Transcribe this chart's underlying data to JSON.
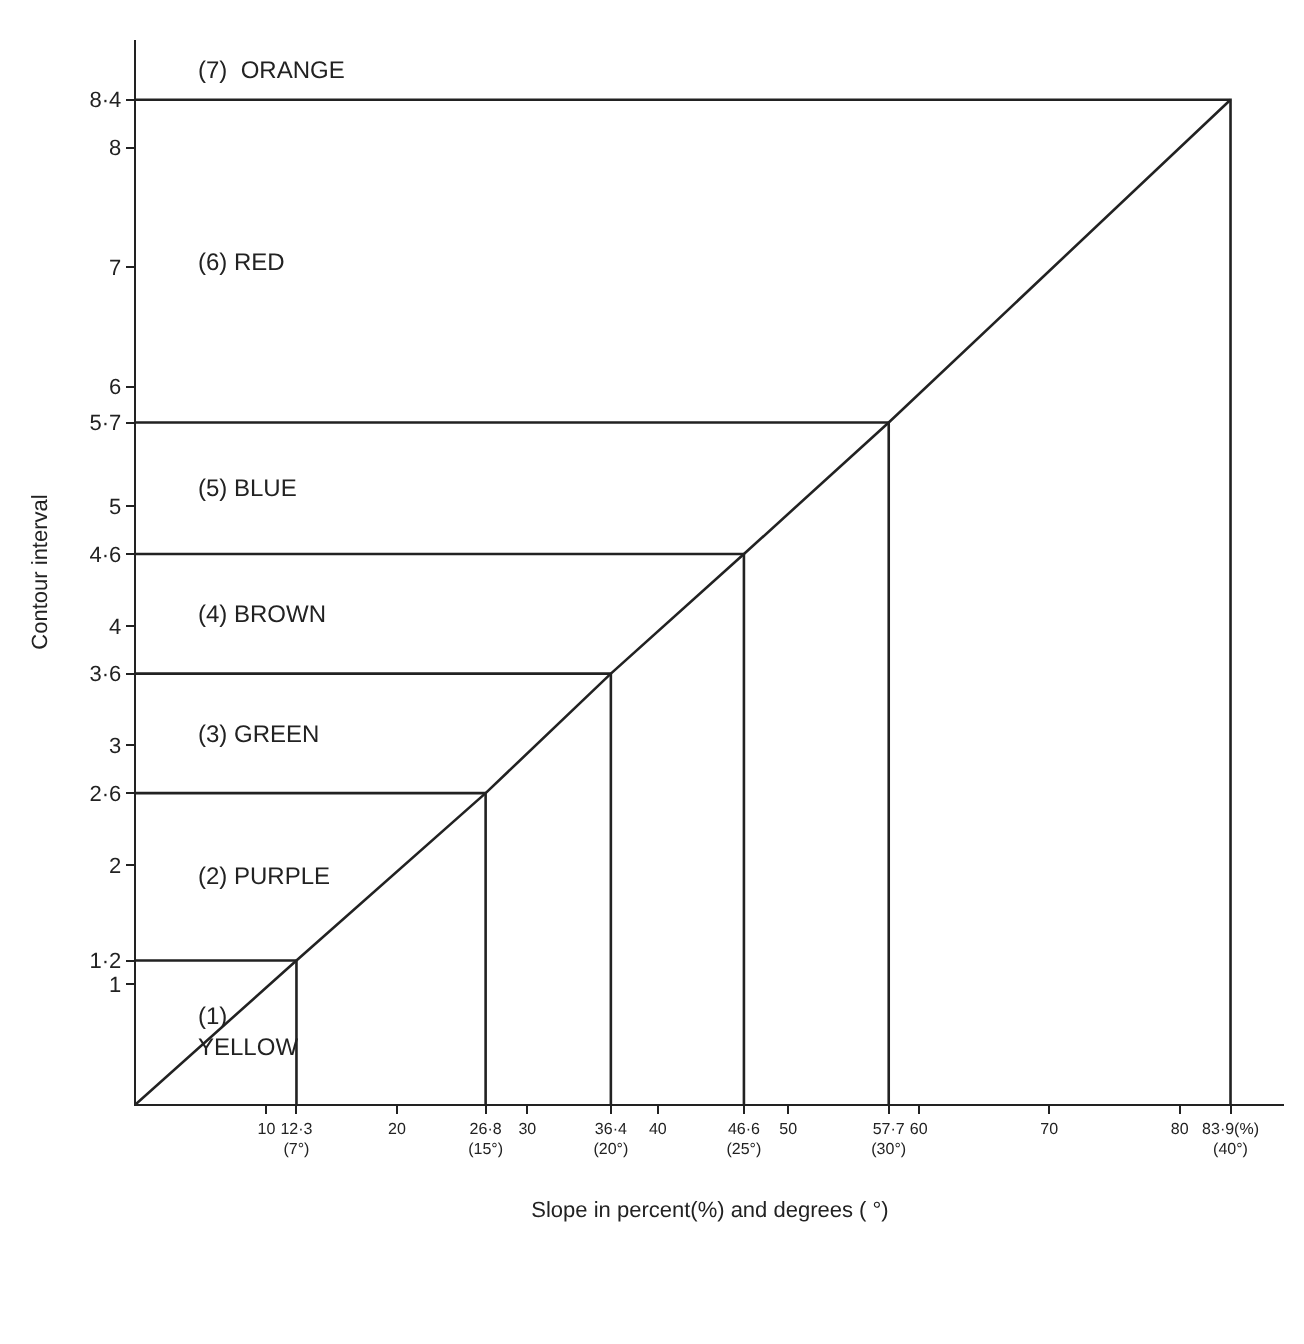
{
  "chart_data": {
    "type": "line",
    "xlabel": "Slope in percent(%) and degrees ( °)",
    "ylabel": "Contour interval",
    "series": [
      {
        "color": "#222222",
        "x": [
          0,
          12.3,
          26.8,
          36.4,
          46.6,
          57.7,
          83.9
        ],
        "values": [
          0,
          1.2,
          2.6,
          3.6,
          4.6,
          5.7,
          8.4
        ]
      },
      {
        "color": "#222222",
        "x": [
          0,
          12.3,
          12.3
        ],
        "values": [
          1.2,
          1.2,
          0
        ]
      },
      {
        "color": "#222222",
        "x": [
          0,
          26.8,
          26.8
        ],
        "values": [
          2.6,
          2.6,
          0
        ]
      },
      {
        "color": "#222222",
        "x": [
          0,
          36.4,
          36.4
        ],
        "values": [
          3.6,
          3.6,
          0
        ]
      },
      {
        "color": "#222222",
        "x": [
          0,
          46.6,
          46.6
        ],
        "values": [
          4.6,
          4.6,
          0
        ]
      },
      {
        "color": "#222222",
        "x": [
          0,
          57.7,
          57.7
        ],
        "values": [
          5.7,
          5.7,
          0
        ]
      },
      {
        "color": "#222222",
        "x": [
          0,
          83.9,
          83.9
        ],
        "values": [
          8.4,
          8.4,
          0
        ]
      }
    ],
    "xlim": [
      0,
      88
    ],
    "ylim": [
      0,
      8.9
    ],
    "xticks": [
      10,
      20,
      30,
      40,
      50,
      60,
      70,
      80,
      {
        "value": 12.3,
        "label": "12·3\n(7°)"
      },
      {
        "value": 26.8,
        "label": "26·8\n(15°)"
      },
      {
        "value": 36.4,
        "label": "36·4\n(20°)"
      },
      {
        "value": 46.6,
        "label": "46·6\n(25°)"
      },
      {
        "value": 57.7,
        "label": "57·7\n(30°)"
      },
      {
        "value": 83.9,
        "label": "83·9(%)\n(40°)"
      }
    ],
    "yticks": [
      1,
      2,
      3,
      4,
      5,
      6,
      7,
      8,
      {
        "value": 1.2,
        "label": "1·2"
      },
      {
        "value": 2.6,
        "label": "2·6"
      },
      {
        "value": 3.6,
        "label": "3·6"
      },
      {
        "value": 4.6,
        "label": "4·6"
      },
      {
        "value": 5.7,
        "label": "5·7"
      },
      {
        "value": 8.4,
        "label": "8·4"
      }
    ],
    "marker": "none",
    "line_style": "solid",
    "annotations": [
      "(1)\nYELLOW",
      "(2) PURPLE",
      "(3) GREEN",
      "(4) BROWN",
      "(5) BLUE",
      "(6) RED",
      "(7)  ORANGE"
    ]
  }
}
